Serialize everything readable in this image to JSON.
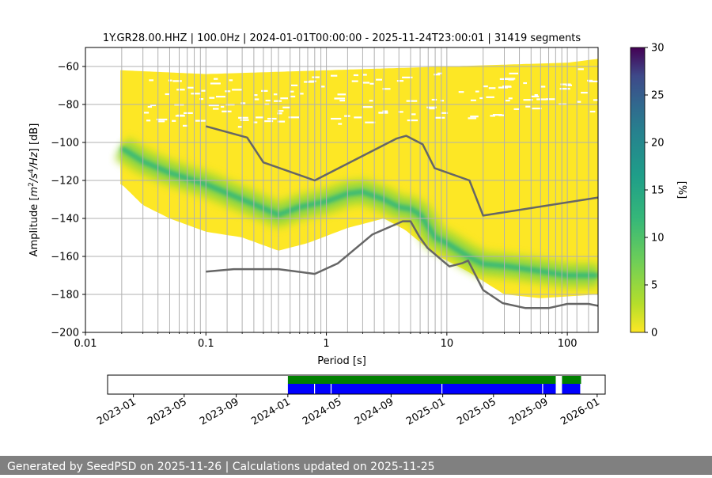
{
  "title": "1Y.GR28.00.HHZ | 100.0Hz | 2024-01-01T00:00:00 - 2025-11-24T23:00:01 | 31419 segments",
  "footer": "Generated by SeedPSD on 2025-11-26 | Calculations updated on 2025-11-25",
  "chart_data": [
    {
      "type": "heatmap",
      "title": "1Y.GR28.00.HHZ | 100.0Hz | 2024-01-01T00:00:00 - 2025-11-24T23:00:01 | 31419 segments",
      "xlabel": "Period [s]",
      "ylabel": "Amplitude [m²/s⁴/Hz] [dB]",
      "x_scale": "log",
      "xlim": [
        0.01,
        180
      ],
      "ylim": [
        -200,
        -50
      ],
      "x_tick_labels": [
        "0.01",
        "0.1",
        "1",
        "10",
        "100"
      ],
      "y_ticks": [
        -200,
        -180,
        -160,
        -140,
        -120,
        -100,
        -80,
        -60
      ],
      "grid": true,
      "colorbar": {
        "label": "[%]",
        "range": [
          0,
          30
        ],
        "ticks": [
          0,
          5,
          10,
          15,
          20,
          25,
          30
        ],
        "colormap": "viridis_r"
      },
      "psd_mode": {
        "period": [
          0.02,
          0.03,
          0.05,
          0.1,
          0.2,
          0.4,
          0.6,
          1.0,
          1.5,
          2.0,
          3.0,
          4.0,
          5.0,
          6.0,
          8.0,
          10,
          15,
          20,
          30,
          50,
          100,
          180
        ],
        "db": [
          -103,
          -110,
          -116,
          -122,
          -130,
          -138,
          -134,
          -131,
          -127,
          -126,
          -130,
          -134,
          -135,
          -138,
          -150,
          -153,
          -160,
          -164,
          -165,
          -167,
          -170,
          -170
        ]
      },
      "psd_upper": [
        {
          "period": 0.02,
          "db": -62
        },
        {
          "period": 0.1,
          "db": -64
        },
        {
          "period": 1,
          "db": -62
        },
        {
          "period": 10,
          "db": -60
        },
        {
          "period": 100,
          "db": -58
        },
        {
          "period": 180,
          "db": -56
        }
      ],
      "psd_lower": [
        {
          "period": 0.02,
          "db": -122
        },
        {
          "period": 0.03,
          "db": -133
        },
        {
          "period": 0.05,
          "db": -140
        },
        {
          "period": 0.1,
          "db": -147
        },
        {
          "period": 0.2,
          "db": -150
        },
        {
          "period": 0.4,
          "db": -157
        },
        {
          "period": 0.7,
          "db": -153
        },
        {
          "period": 1.5,
          "db": -145
        },
        {
          "period": 3,
          "db": -140
        },
        {
          "period": 4.5,
          "db": -146
        },
        {
          "period": 8,
          "db": -159
        },
        {
          "period": 15,
          "db": -168
        },
        {
          "period": 30,
          "db": -180
        },
        {
          "period": 60,
          "db": -182
        },
        {
          "period": 180,
          "db": -180
        }
      ],
      "series": [
        {
          "period": [
            0.1,
            0.22,
            0.3,
            0.8,
            3.8,
            4.6,
            6.3,
            7.9,
            15.4,
            20,
            180
          ],
          "db": [
            -91.5,
            -97.4,
            -110.5,
            -120,
            -98,
            -96.5,
            -101,
            -113.5,
            -120,
            -138.5,
            -129
          ]
        },
        {
          "period": [
            0.1,
            0.17,
            0.4,
            0.8,
            1.24,
            2.4,
            4.3,
            5,
            5.9,
            6.9,
            9.5,
            10.5,
            13.5,
            15,
            20,
            29,
            45,
            70,
            100,
            150,
            180
          ],
          "db": [
            -168,
            -166.7,
            -166.7,
            -169.2,
            -163.7,
            -148.5,
            -141.5,
            -141.5,
            -149.5,
            -155.5,
            -163,
            -165.3,
            -163.5,
            -162.2,
            -177.7,
            -184.6,
            -187.2,
            -187.2,
            -185,
            -185,
            -186
          ]
        }
      ],
      "vertical_lines_period": [
        0.02,
        0.03,
        0.04,
        0.05,
        0.06,
        0.07,
        0.08,
        0.09,
        0.1,
        0.15,
        0.2,
        0.25,
        0.3,
        0.35,
        0.4,
        0.5,
        0.6,
        0.7,
        0.8,
        0.9,
        1.0,
        1.5,
        2.0,
        2.5,
        3.0,
        4.0,
        5.0,
        6.0,
        7.0,
        8.0,
        9.0,
        10,
        20,
        30,
        40,
        50,
        60,
        70,
        80,
        90,
        100,
        120,
        150
      ]
    },
    {
      "type": "bar",
      "x_tick_labels": [
        "2023-01",
        "2023-05",
        "2023-09",
        "2024-01",
        "2024-05",
        "2024-09",
        "2025-01",
        "2025-05",
        "2025-09",
        "2026-01"
      ],
      "xlim": [
        "2022-11-01",
        "2026-01-20"
      ],
      "series": [
        {
          "color": "#008000",
          "segments": [
            [
              "2024-01-01",
              "2025-09-25"
            ],
            [
              "2025-10-10",
              "2025-11-24"
            ]
          ]
        },
        {
          "color": "#0000ff",
          "segments": [
            [
              "2024-01-01",
              "2025-09-25"
            ],
            [
              "2025-10-10",
              "2025-11-24"
            ]
          ],
          "gaps": [
            "2024-03-03",
            "2024-04-11",
            "2024-12-29",
            "2025-08-24",
            "2025-11-22"
          ]
        }
      ]
    }
  ]
}
